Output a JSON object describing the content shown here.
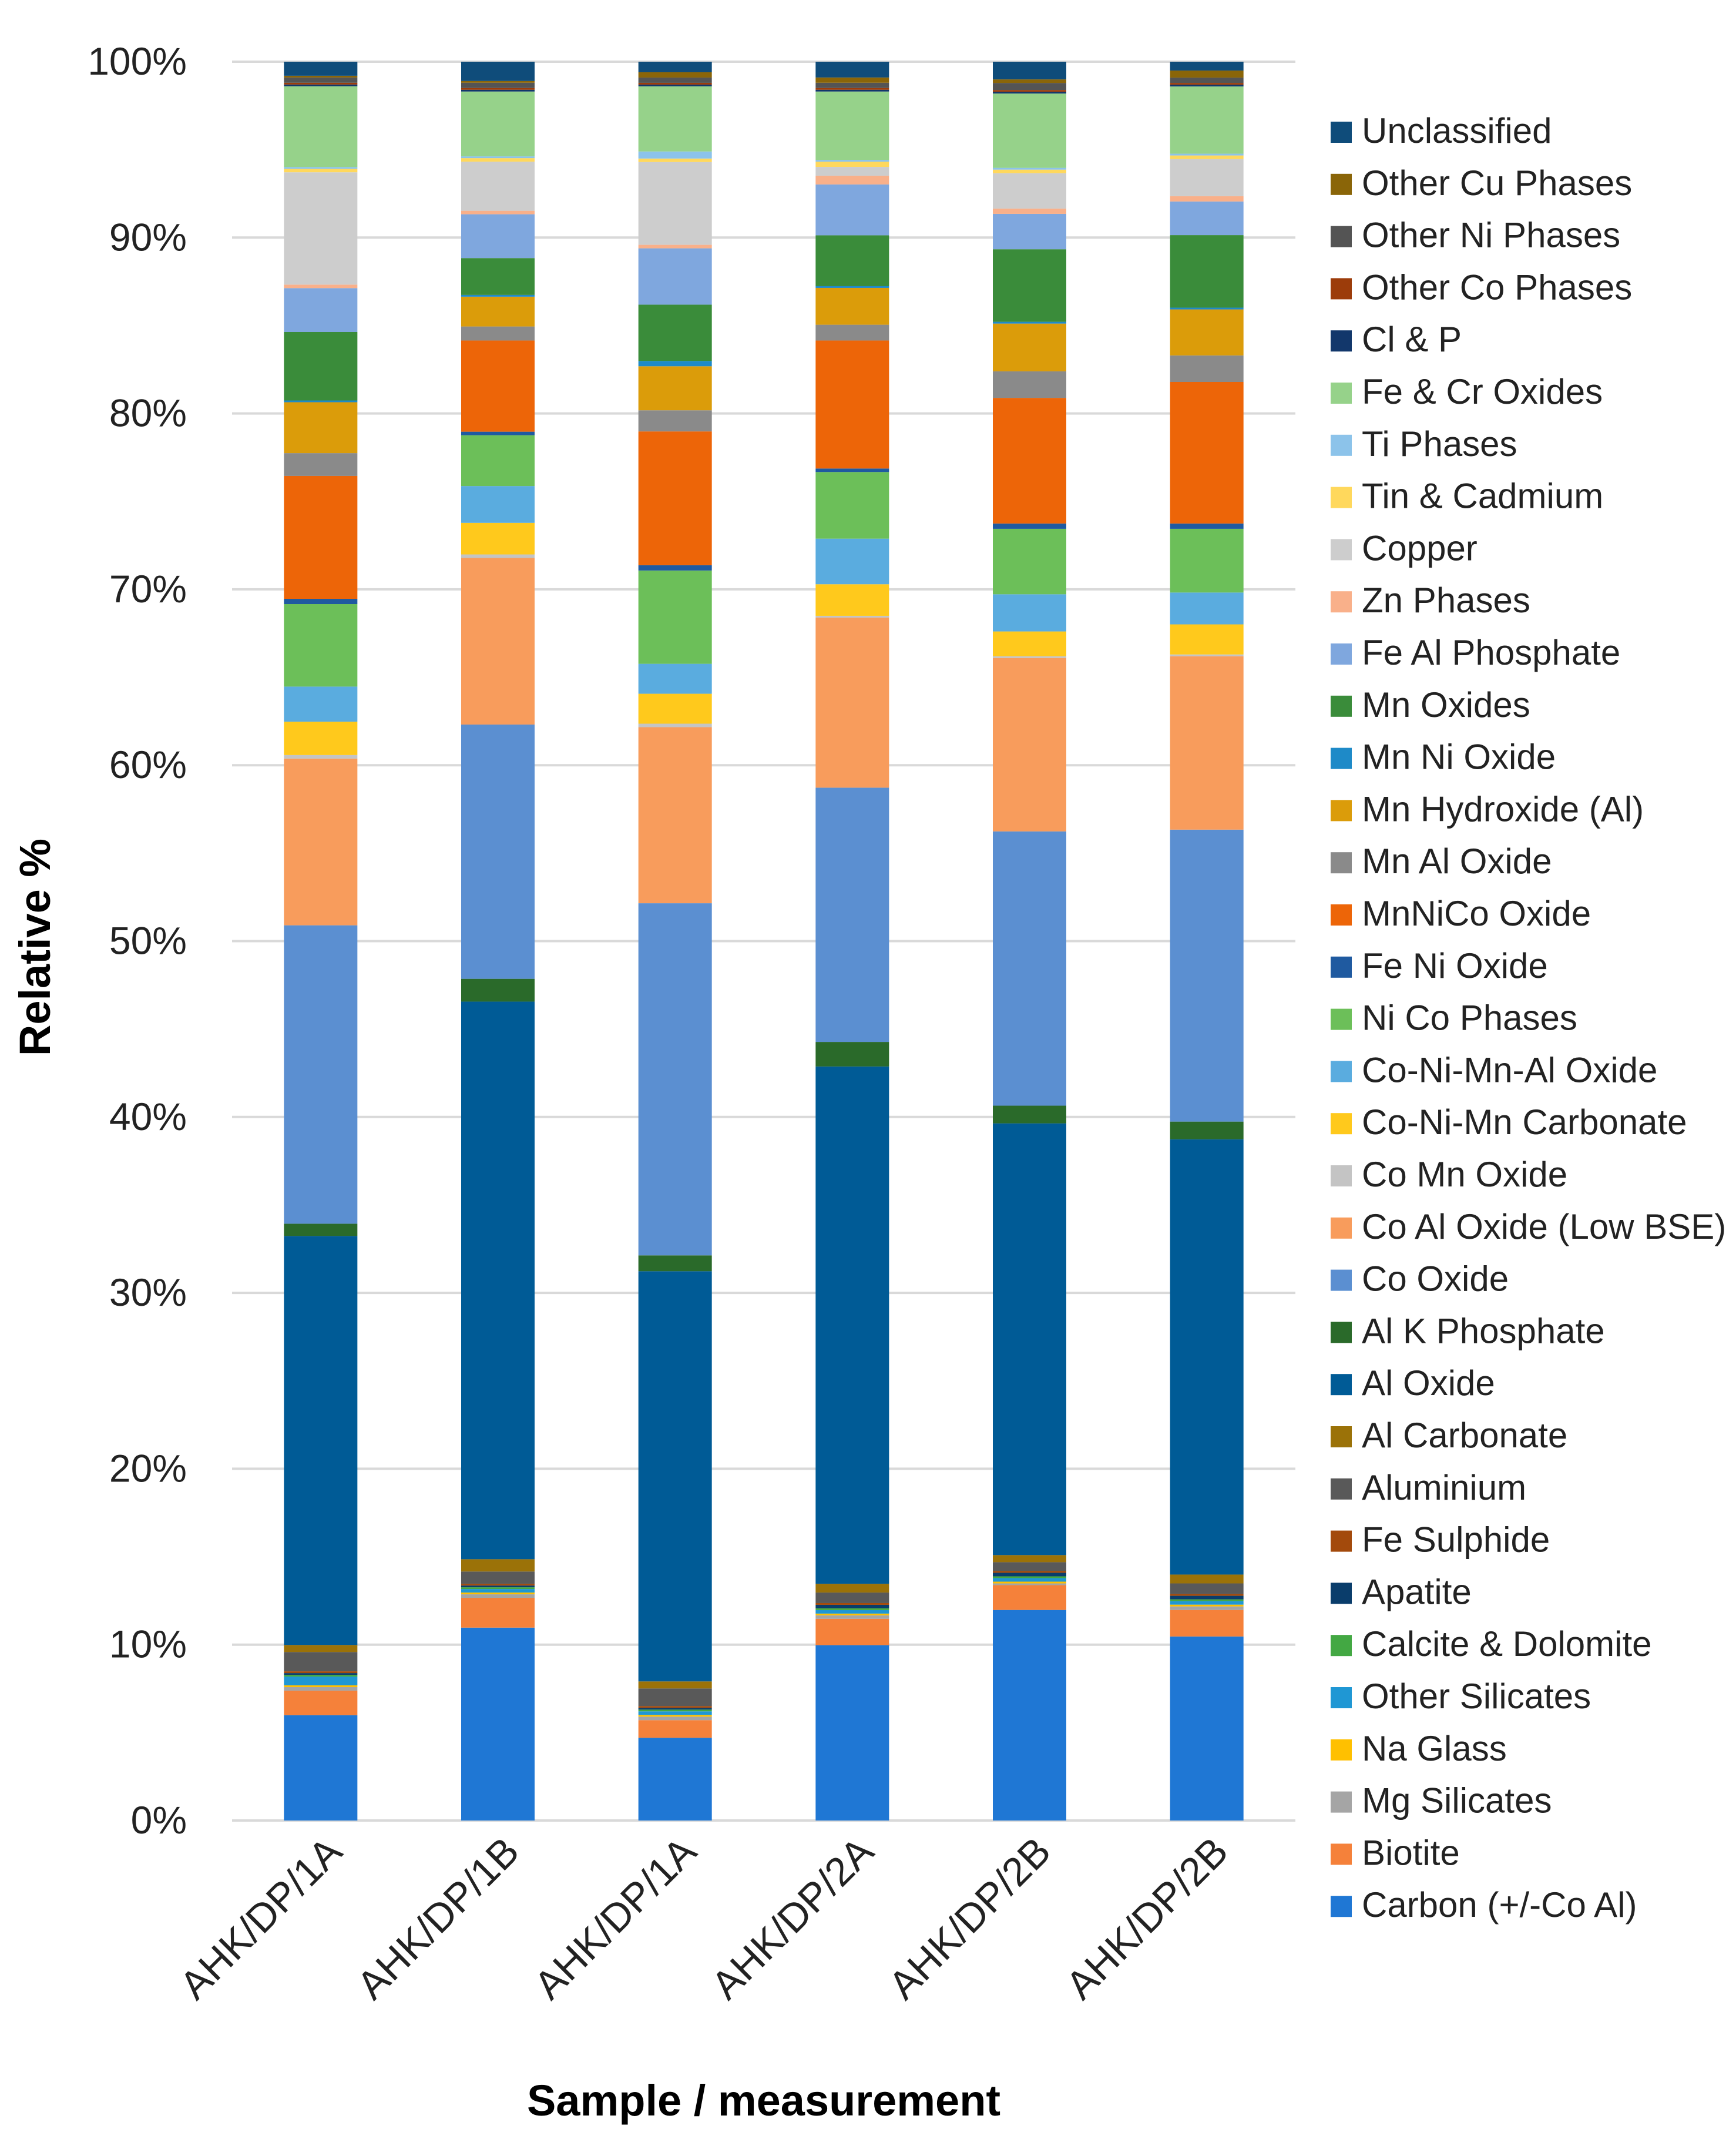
{
  "chart_data": {
    "type": "bar",
    "stacked": true,
    "title": "",
    "xlabel": "Sample / measurement",
    "ylabel": "Relative %",
    "ylim": [
      0,
      100
    ],
    "yticks": [
      0,
      10,
      20,
      30,
      40,
      50,
      60,
      70,
      80,
      90,
      100
    ],
    "ytick_labels": [
      "0%",
      "10%",
      "20%",
      "30%",
      "40%",
      "50%",
      "60%",
      "70%",
      "80%",
      "90%",
      "100%"
    ],
    "grid": true,
    "legend_position": "right",
    "categories": [
      "AHK/DP/1A",
      "AHK/DP/1B",
      "AHK/DP/1A",
      "AHK/DP/2A",
      "AHK/DP/2B",
      "AHK/DP/2B"
    ],
    "series": [
      {
        "name": "Carbon (+/-Co Al)",
        "color": "#1f77d4",
        "values": [
          6.0,
          11.0,
          4.7,
          10.0,
          11.9,
          10.4
        ]
      },
      {
        "name": "Biotite",
        "color": "#f5813a",
        "values": [
          1.4,
          1.7,
          1.0,
          1.5,
          1.4,
          1.5
        ]
      },
      {
        "name": "Mg Silicates",
        "color": "#a5a5a5",
        "values": [
          0.2,
          0.2,
          0.2,
          0.2,
          0.1,
          0.2
        ]
      },
      {
        "name": "Na Glass",
        "color": "#ffc000",
        "values": [
          0.1,
          0.1,
          0.1,
          0.1,
          0.1,
          0.1
        ]
      },
      {
        "name": "Other Silicates",
        "color": "#1f97d4",
        "values": [
          0.5,
          0.2,
          0.2,
          0.2,
          0.2,
          0.2
        ]
      },
      {
        "name": "Calcite & Dolomite",
        "color": "#43a843",
        "values": [
          0.1,
          0.1,
          0.1,
          0.1,
          0.1,
          0.1
        ]
      },
      {
        "name": "Apatite",
        "color": "#0a3d6b",
        "values": [
          0.1,
          0.1,
          0.1,
          0.2,
          0.2,
          0.2
        ]
      },
      {
        "name": "Fe Sulphide",
        "color": "#a34a0c",
        "values": [
          0.1,
          0.1,
          0.1,
          0.1,
          0.1,
          0.1
        ]
      },
      {
        "name": "Aluminium",
        "color": "#595959",
        "values": [
          1.1,
          0.7,
          1.0,
          0.6,
          0.5,
          0.6
        ]
      },
      {
        "name": "Al Carbonate",
        "color": "#9b7208",
        "values": [
          0.4,
          0.7,
          0.4,
          0.5,
          0.4,
          0.5
        ]
      },
      {
        "name": "Al Oxide",
        "color": "#005b96",
        "values": [
          23.3,
          31.8,
          23.3,
          29.5,
          24.4,
          24.6
        ]
      },
      {
        "name": "Al K Phosphate",
        "color": "#2a6a2a",
        "values": [
          0.7,
          1.3,
          0.9,
          1.4,
          1.0,
          1.0
        ]
      },
      {
        "name": "Co Oxide",
        "color": "#5b8fd1",
        "values": [
          17.0,
          14.5,
          20.0,
          14.5,
          15.5,
          16.5
        ]
      },
      {
        "name": "Co Al Oxide (Low BSE)",
        "color": "#f89c5c",
        "values": [
          9.5,
          9.5,
          10.0,
          9.7,
          9.8,
          9.8
        ]
      },
      {
        "name": "Co Mn Oxide",
        "color": "#c4c4c4",
        "values": [
          0.2,
          0.2,
          0.2,
          0.1,
          0.1,
          0.1
        ]
      },
      {
        "name": "Co-Ni-Mn Carbonate",
        "color": "#ffc91c",
        "values": [
          1.9,
          1.8,
          1.7,
          1.8,
          1.4,
          1.7
        ]
      },
      {
        "name": "Co-Ni-Mn-Al Oxide",
        "color": "#5aacdf",
        "values": [
          2.0,
          2.1,
          1.7,
          2.6,
          2.1,
          1.8
        ]
      },
      {
        "name": "Ni Co Phases",
        "color": "#6cbf59",
        "values": [
          4.7,
          2.9,
          5.3,
          3.8,
          3.7,
          3.6
        ]
      },
      {
        "name": "Fe Ni Oxide",
        "color": "#1f5aa0",
        "values": [
          0.3,
          0.2,
          0.3,
          0.2,
          0.3,
          0.3
        ]
      },
      {
        "name": "MnNiCo Oxide",
        "color": "#ed6508",
        "values": [
          7.0,
          5.2,
          7.6,
          7.3,
          7.1,
          8.0
        ]
      },
      {
        "name": "Mn Al Oxide",
        "color": "#8a8a8a",
        "values": [
          1.3,
          0.8,
          1.2,
          0.9,
          1.5,
          1.5
        ]
      },
      {
        "name": "Mn Hydroxide (Al)",
        "color": "#db9c0a",
        "values": [
          2.9,
          1.7,
          2.5,
          2.1,
          2.7,
          2.6
        ]
      },
      {
        "name": "Mn Ni Oxide",
        "color": "#1e8ac8",
        "values": [
          0.1,
          0.1,
          0.3,
          0.1,
          0.1,
          0.1
        ]
      },
      {
        "name": "Mn Oxides",
        "color": "#3a8c3a",
        "values": [
          3.9,
          2.1,
          3.2,
          2.9,
          4.1,
          4.1
        ]
      },
      {
        "name": "Fe Al Phosphate",
        "color": "#7fa7de",
        "values": [
          2.5,
          2.5,
          3.2,
          2.9,
          2.0,
          1.9
        ]
      },
      {
        "name": "Zn Phases",
        "color": "#f9b08a",
        "values": [
          0.2,
          0.2,
          0.2,
          0.5,
          0.3,
          0.3
        ]
      },
      {
        "name": "Copper",
        "color": "#cdcdcd",
        "values": [
          6.4,
          2.8,
          4.7,
          0.5,
          2.0,
          2.1
        ]
      },
      {
        "name": "Tin & Cadmium",
        "color": "#ffd85c",
        "values": [
          0.2,
          0.2,
          0.2,
          0.3,
          0.2,
          0.2
        ]
      },
      {
        "name": "Ti Phases",
        "color": "#8cc3ea",
        "values": [
          0.1,
          0.1,
          0.4,
          0.1,
          0.1,
          0.1
        ]
      },
      {
        "name": "Fe & Cr Oxides",
        "color": "#96d28a",
        "values": [
          4.6,
          3.7,
          3.7,
          3.9,
          4.2,
          3.8
        ]
      },
      {
        "name": "Cl & P",
        "color": "#12376b",
        "values": [
          0.1,
          0.1,
          0.1,
          0.1,
          0.1,
          0.1
        ]
      },
      {
        "name": "Other Co Phases",
        "color": "#9c3c0a",
        "values": [
          0.1,
          0.1,
          0.1,
          0.1,
          0.1,
          0.1
        ]
      },
      {
        "name": "Other Ni Phases",
        "color": "#545454",
        "values": [
          0.3,
          0.3,
          0.3,
          0.3,
          0.4,
          0.3
        ]
      },
      {
        "name": "Other Cu Phases",
        "color": "#8a6508",
        "values": [
          0.1,
          0.1,
          0.3,
          0.3,
          0.2,
          0.4
        ]
      },
      {
        "name": "Unclassified",
        "color": "#0f4c7a",
        "values": [
          0.8,
          1.1,
          0.6,
          0.9,
          1.0,
          0.5
        ]
      }
    ]
  }
}
